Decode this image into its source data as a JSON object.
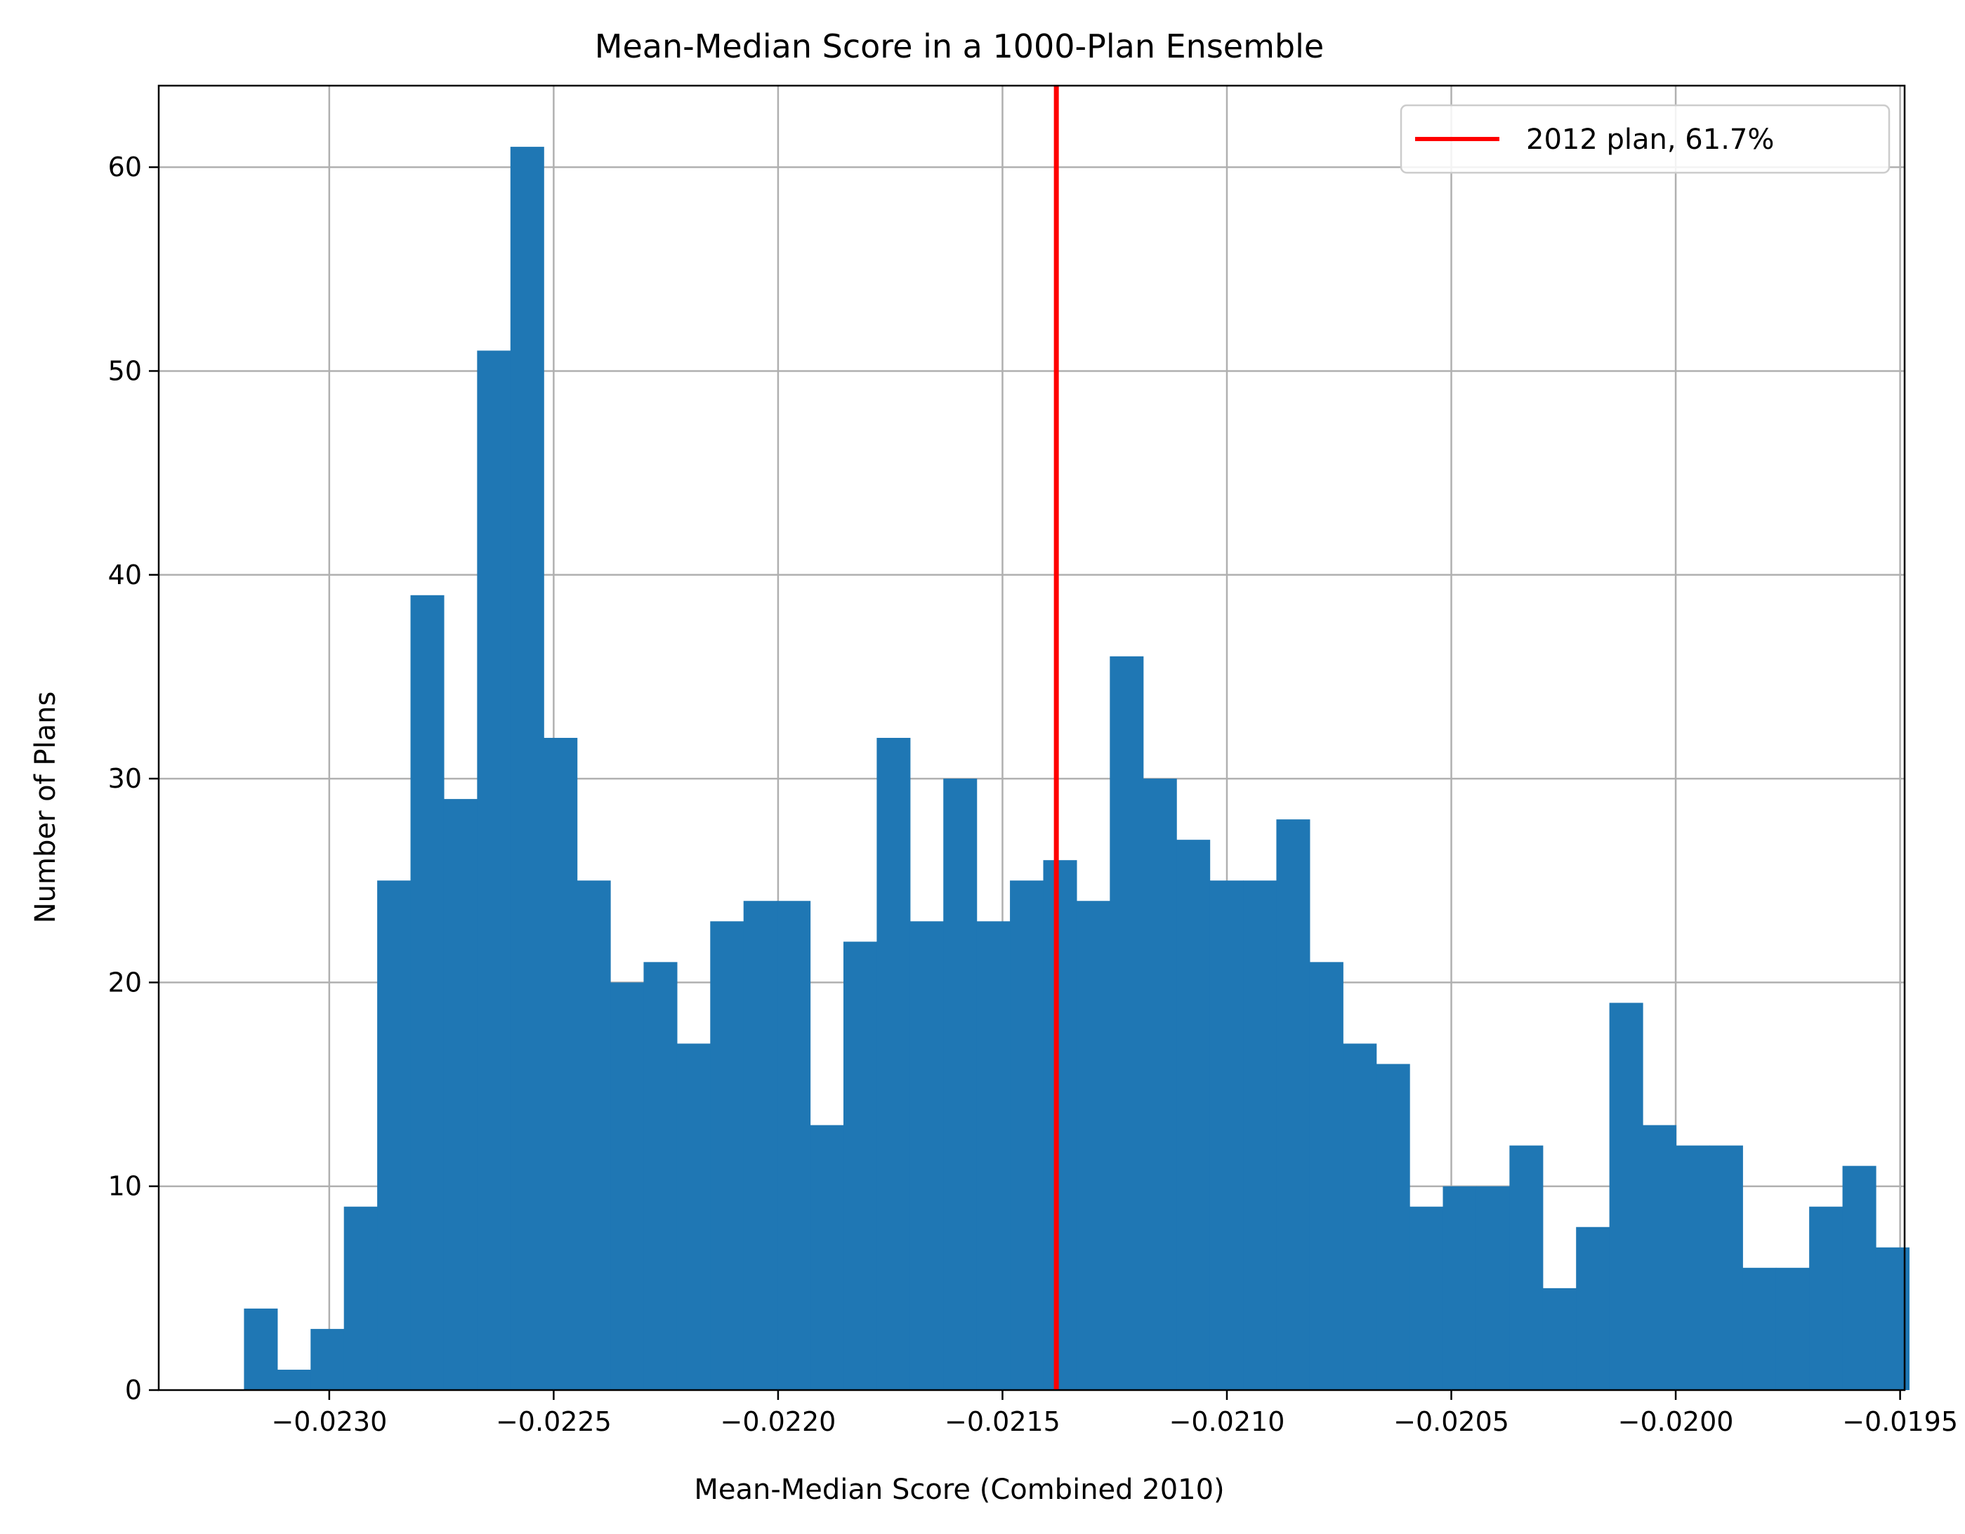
{
  "chart_data": {
    "type": "bar",
    "title": "Mean-Median Score in a 1000-Plan Ensemble",
    "xlabel": "Mean-Median Score (Combined 2010)",
    "ylabel": "Number of Plans",
    "xlim": [
      -0.02338,
      -0.01949
    ],
    "ylim": [
      0,
      64
    ],
    "grid": true,
    "legend_position": "top-right",
    "xticks": [
      -0.023,
      -0.0225,
      -0.022,
      -0.0215,
      -0.021,
      -0.0205,
      -0.02,
      -0.0195
    ],
    "xtick_labels": [
      "−0.0230",
      "−0.0225",
      "−0.0220",
      "−0.0215",
      "−0.0210",
      "−0.0205",
      "−0.0200",
      "−0.0195"
    ],
    "yticks": [
      0,
      10,
      20,
      30,
      40,
      50,
      60
    ],
    "ytick_labels": [
      "0",
      "10",
      "20",
      "30",
      "40",
      "50",
      "60"
    ],
    "bin_start": -0.02319,
    "bin_width": 7.42e-05,
    "values": [
      4,
      1,
      3,
      9,
      25,
      39,
      29,
      51,
      61,
      32,
      25,
      20,
      21,
      17,
      23,
      24,
      24,
      13,
      22,
      32,
      23,
      30,
      23,
      25,
      26,
      24,
      36,
      30,
      27,
      25,
      25,
      28,
      21,
      17,
      16,
      9,
      10,
      10,
      12,
      5,
      8,
      19,
      13,
      12,
      12,
      6,
      6,
      9,
      11,
      7
    ],
    "bar_color": "#1f77b4",
    "reference_line": {
      "x": -0.02138,
      "color": "#ff0000",
      "label": "2012 plan, 61.7%"
    }
  }
}
